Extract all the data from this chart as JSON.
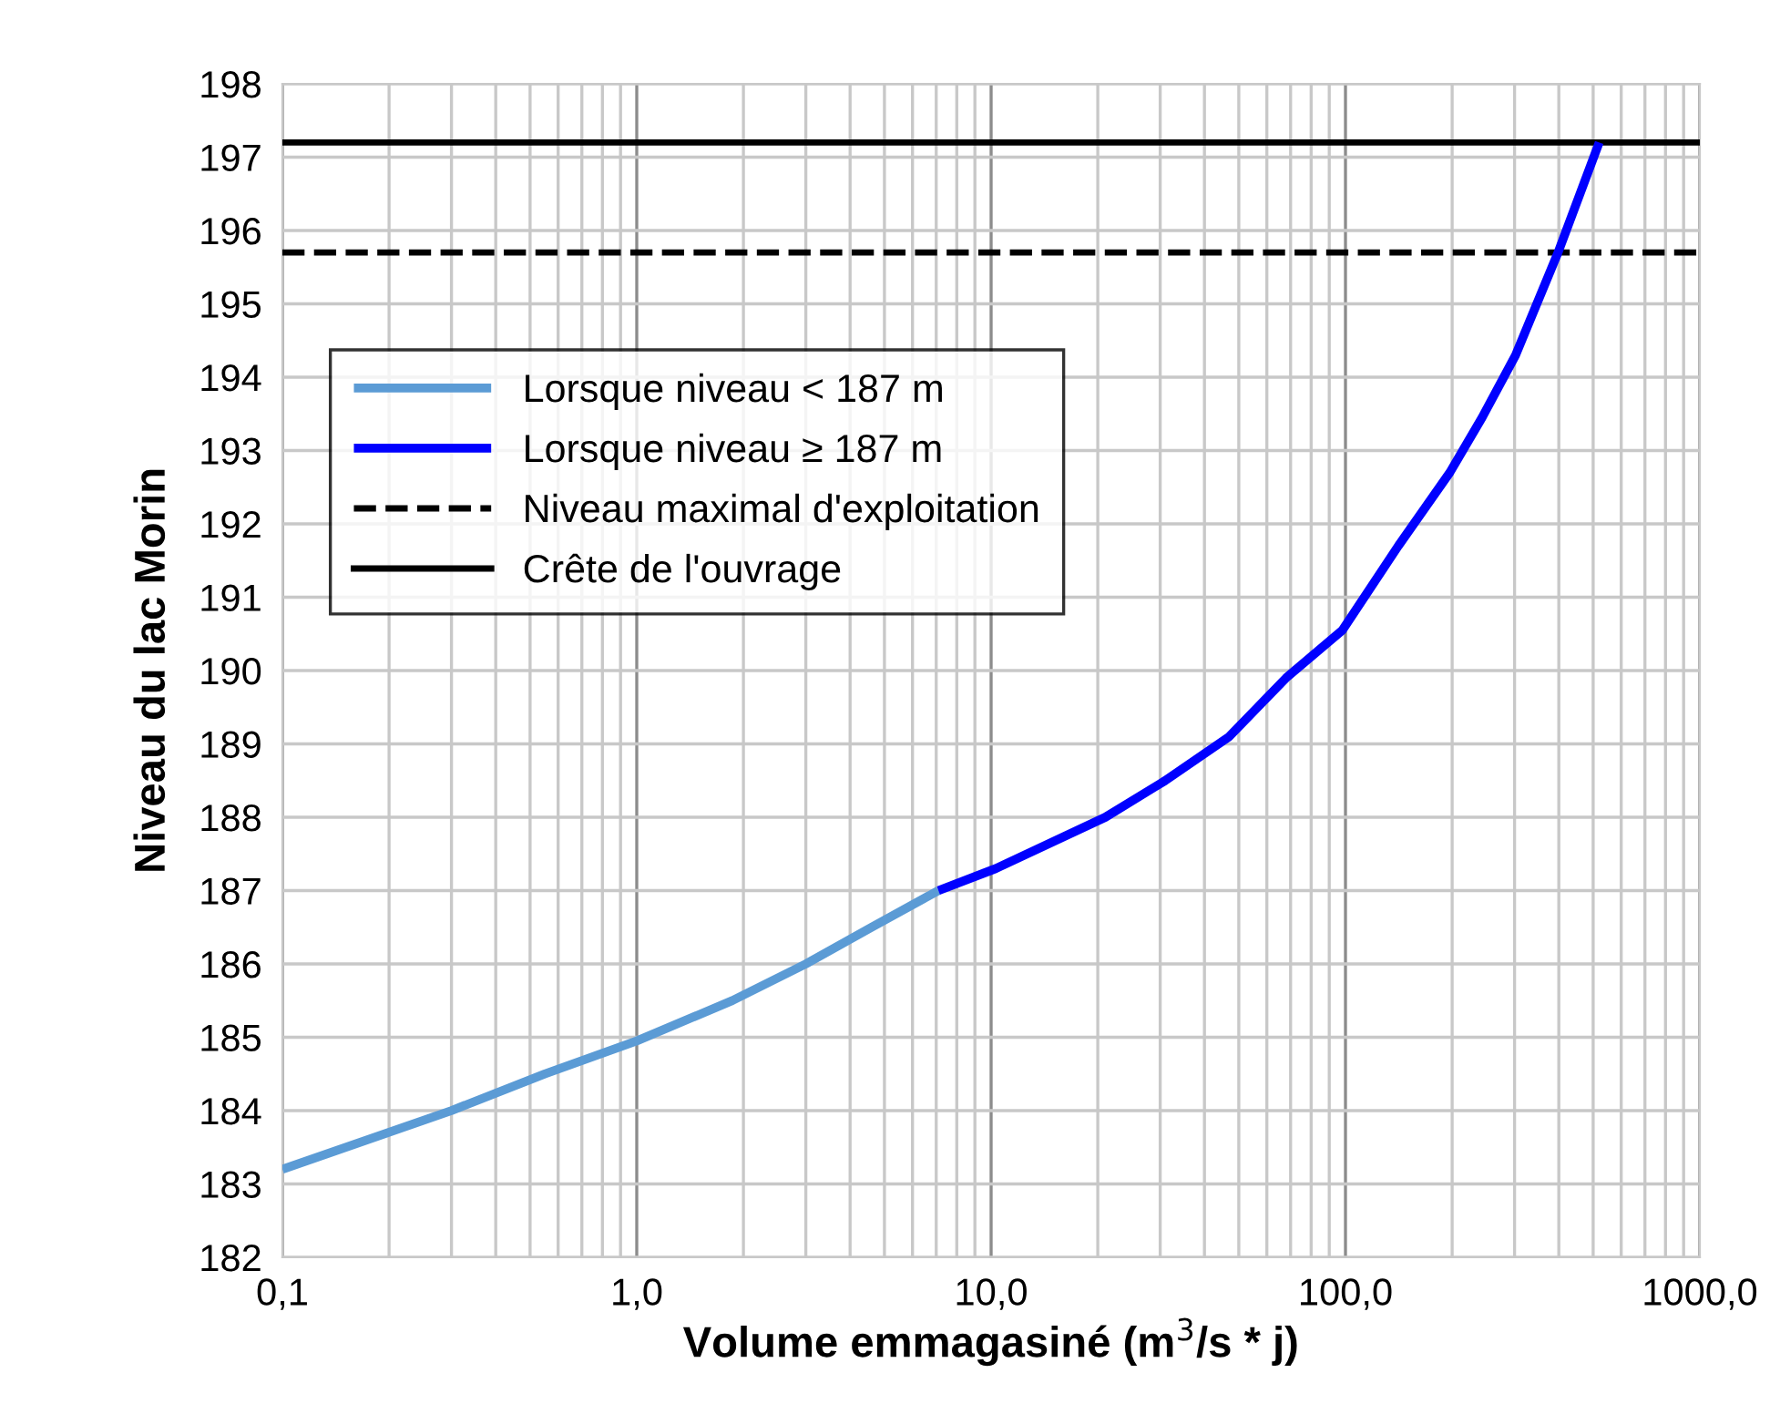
{
  "chart_data": {
    "type": "line",
    "xlabel": "Volume emmagasiné (m$^{3}$/s * j)",
    "ylabel": "Niveau du lac Morin",
    "log": "x",
    "xlim": [
      0.1,
      1000
    ],
    "xticks": [
      {
        "value": 0.1,
        "label": "0,1"
      },
      {
        "value": 1,
        "label": "1,0"
      },
      {
        "value": 10,
        "label": "10,0"
      },
      {
        "value": 100,
        "label": "100,0"
      },
      {
        "value": 1000,
        "label": "1000,0"
      }
    ],
    "ylim": [
      182,
      198
    ],
    "yticks": [
      182,
      183,
      184,
      185,
      186,
      187,
      188,
      189,
      190,
      191,
      192,
      193,
      194,
      195,
      196,
      197,
      198
    ],
    "grid": true,
    "legend": "top left",
    "line_style": "solid",
    "marker": "none",
    "series": [
      {
        "name": "Lorsque niveau < 187 m",
        "color": "#5b9bd5",
        "x": [
          0.1,
          0.3,
          0.55,
          1.0,
          1.86,
          3.0,
          4.6,
          7.1
        ],
        "values": [
          183.2,
          184.0,
          184.5,
          184.95,
          185.5,
          186.0,
          186.5,
          187.0
        ]
      },
      {
        "name": "Lorsque niveau ≥ 187 m",
        "color": "#0000ff",
        "x": [
          7.1,
          10.3,
          21,
          31,
          47,
          68,
          98,
          141,
          197,
          243,
          302,
          398,
          520
        ],
        "values": [
          187.0,
          187.3,
          188.0,
          188.5,
          189.1,
          189.9,
          190.55,
          191.7,
          192.7,
          193.45,
          194.3,
          195.7,
          197.2
        ]
      }
    ],
    "ref_lines": [
      {
        "axis": "y",
        "value": 195.7,
        "label": "Niveau maximal d'exploitation",
        "color": "#000000",
        "line_style": "dashed"
      },
      {
        "axis": "y",
        "value": 197.2,
        "label": "Crête de l'ouvrage",
        "color": "#000000",
        "line_style": "solid"
      }
    ]
  }
}
